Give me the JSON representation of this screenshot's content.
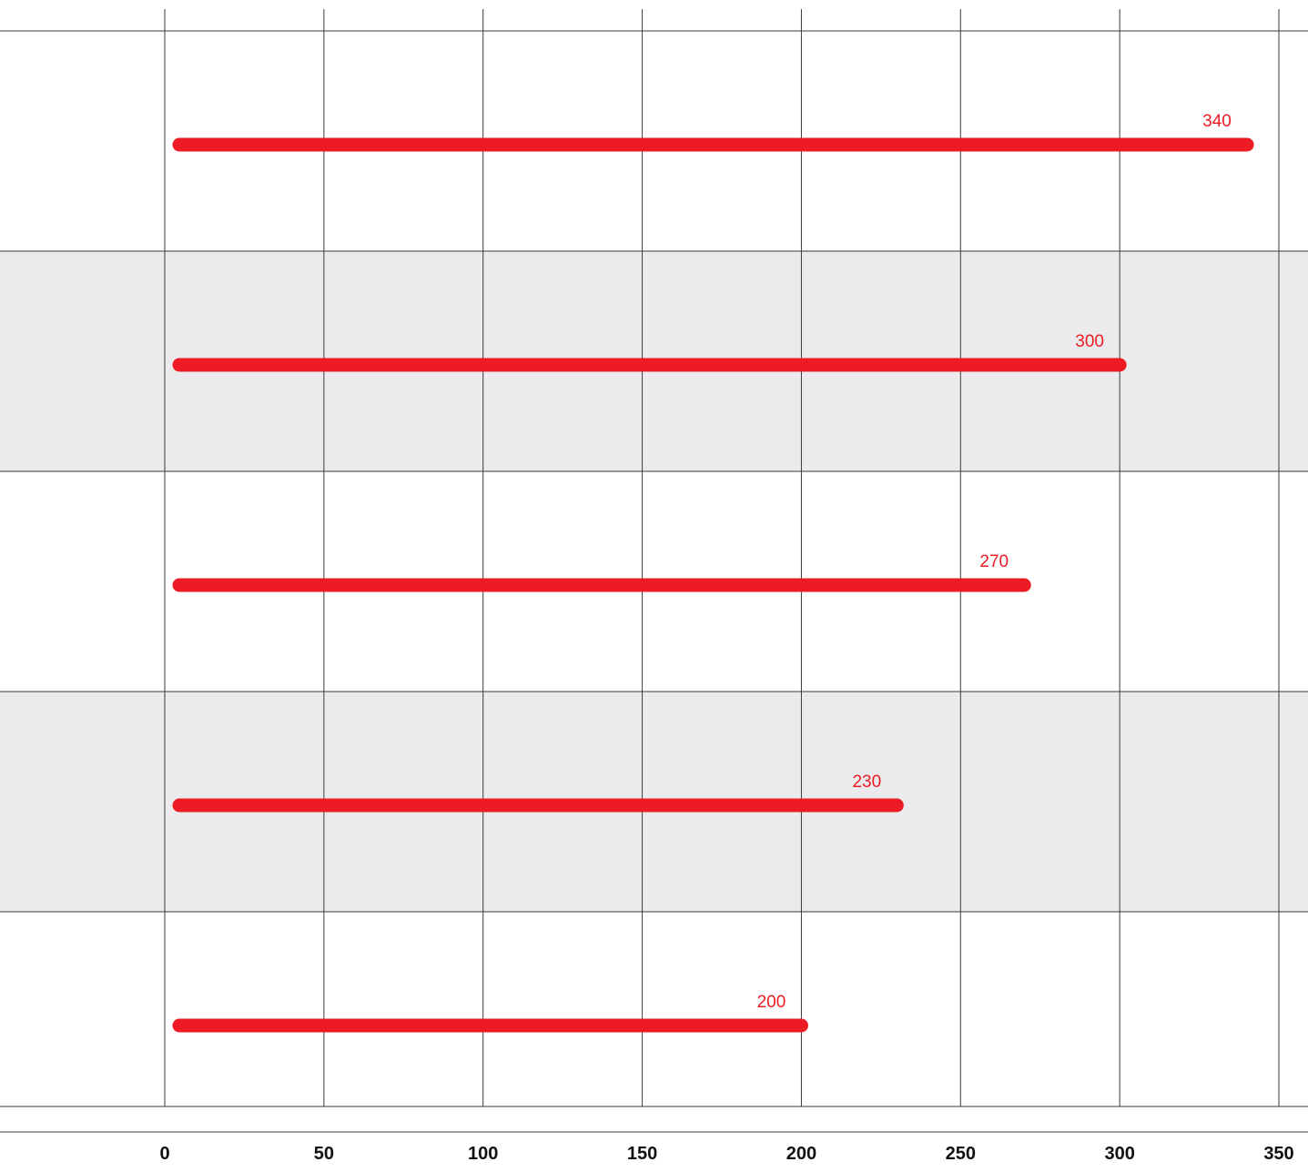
{
  "chart_data": {
    "type": "bar",
    "orientation": "horizontal",
    "categories": [
      "",
      "",
      "",
      "",
      ""
    ],
    "values": [
      340,
      300,
      270,
      230,
      200
    ],
    "value_labels": [
      "340",
      "300",
      "270",
      "230",
      "200"
    ],
    "title": "",
    "xlabel": "",
    "ylabel": "",
    "xlim": [
      0,
      350
    ],
    "x_ticks": [
      0,
      50,
      100,
      150,
      200,
      250,
      300,
      350
    ],
    "x_tick_labels": [
      "0",
      "50",
      "100",
      "150",
      "200",
      "250",
      "300",
      "350"
    ],
    "grid": true,
    "legend": "none"
  },
  "colors": {
    "bar": "#ed1c24",
    "label": "#ed1c24",
    "band": "#ebebed",
    "grid": "#3a3a3a",
    "tick_text": "#111111",
    "background": "#ffffff"
  }
}
